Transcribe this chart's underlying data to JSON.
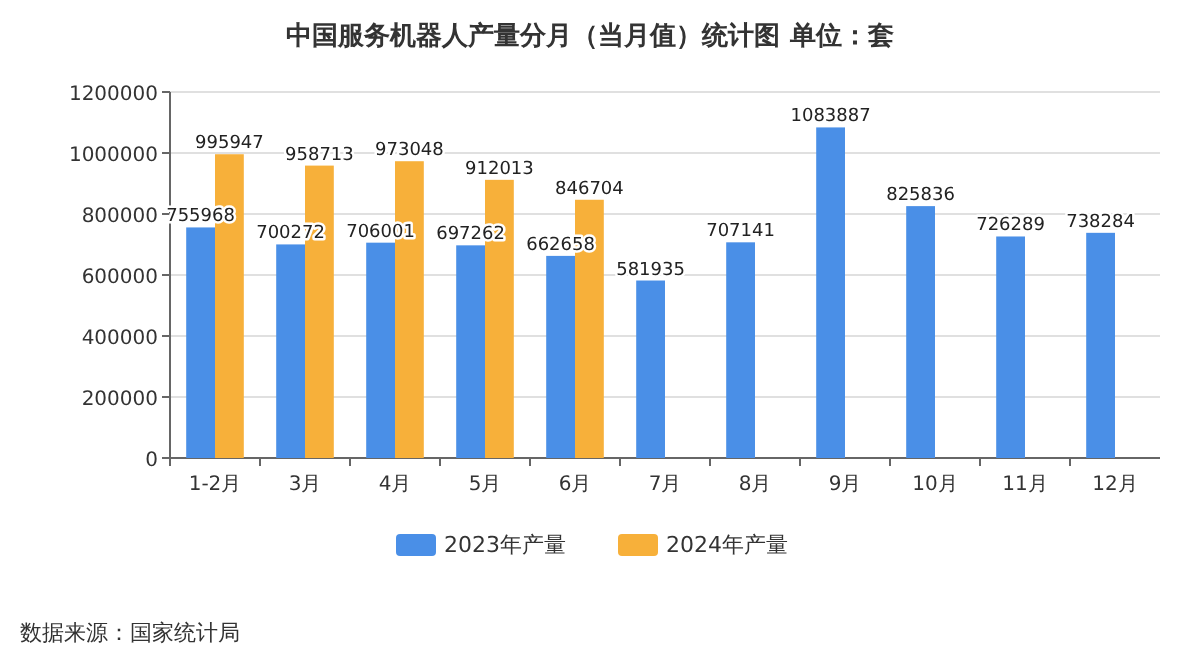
{
  "chart_data": {
    "type": "bar",
    "title": "中国服务机器人产量分月（当月值）统计图 单位：套",
    "categories": [
      "1-2月",
      "3月",
      "4月",
      "5月",
      "6月",
      "7月",
      "8月",
      "9月",
      "10月",
      "11月",
      "12月"
    ],
    "series": [
      {
        "name": "2023年产量",
        "color": "#4a8fe7",
        "values": [
          755968,
          700272,
          706001,
          697262,
          662658,
          581935,
          707141,
          1083887,
          825836,
          726289,
          738284
        ]
      },
      {
        "name": "2024年产量",
        "color": "#f7b03a",
        "values": [
          995947,
          958713,
          973048,
          912013,
          846704,
          null,
          null,
          null,
          null,
          null,
          null
        ]
      }
    ],
    "ylim": [
      0,
      1200000
    ],
    "yticks": [
      0,
      200000,
      400000,
      600000,
      800000,
      1000000,
      1200000
    ],
    "grid": "y",
    "legend": "bottom",
    "data_labels": true,
    "annotations": [
      "数据来源：国家统计局"
    ]
  }
}
